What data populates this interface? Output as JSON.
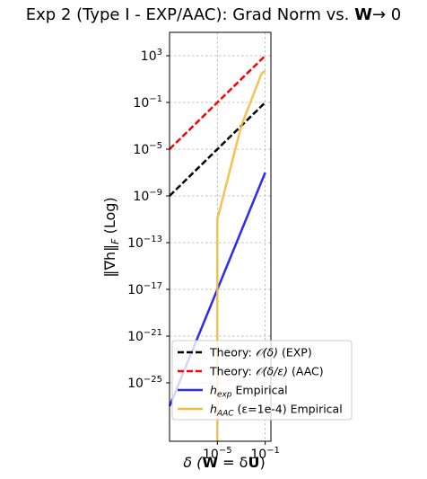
{
  "chart_data": {
    "type": "line",
    "title": "Exp 2 (Type I - EXP/AAC): Grad Norm vs. W→0",
    "title_prefix": "Exp 2 (Type I - EXP/AAC): Grad Norm vs. ",
    "title_bold": "W",
    "title_suffix": "→ 0",
    "xlabel": "δ (W = δU)",
    "xlabel_prefix": "δ (",
    "xlabel_bold_1": "W",
    "xlabel_mid": " = δ",
    "xlabel_bold_2": "U",
    "xlabel_suffix": ")",
    "ylabel": "‖∇h‖F (Log)",
    "ylabel_main": "‖∇h‖",
    "ylabel_sub": "F",
    "ylabel_tail": " (Log)",
    "xscale": "log",
    "yscale": "log",
    "xlim": [
      1e-09,
      0.3
    ],
    "ylim": [
      1e-30,
      100000.0
    ],
    "xticks": [
      {
        "value": 1e-05,
        "label": "10",
        "exp": "−5"
      },
      {
        "value": 0.1,
        "label": "10",
        "exp": "−1"
      }
    ],
    "yticks": [
      {
        "value": 1e-25,
        "label": "10",
        "exp": "−25"
      },
      {
        "value": 1e-21,
        "label": "10",
        "exp": "−21"
      },
      {
        "value": 1e-17,
        "label": "10",
        "exp": "−17"
      },
      {
        "value": 1e-13,
        "label": "10",
        "exp": "−13"
      },
      {
        "value": 1e-09,
        "label": "10",
        "exp": "−9"
      },
      {
        "value": 1e-05,
        "label": "10",
        "exp": "−5"
      },
      {
        "value": 0.1,
        "label": "10",
        "exp": "−1"
      },
      {
        "value": 1000,
        "label": "10",
        "exp": "3"
      }
    ],
    "grid": true,
    "legend_position": "lower-right",
    "series": [
      {
        "name": "Theory: O(δ) (EXP)",
        "legend_main": "Theory: ",
        "legend_math": "𝒪(δ)",
        "legend_tail": " (EXP)",
        "color": "#000000",
        "dash": "dashed",
        "x": [
          1e-09,
          0.1
        ],
        "y": [
          1e-09,
          0.1
        ]
      },
      {
        "name": "Theory: O(δ/ε) (AAC)",
        "legend_main": "Theory: ",
        "legend_math": "𝒪(δ/ε)",
        "legend_tail": " (AAC)",
        "color": "#ff0000",
        "dash": "dashed",
        "x": [
          1e-09,
          0.1
        ],
        "y": [
          1e-05,
          1000
        ]
      },
      {
        "name": "h_exp Empirical",
        "legend_main": "h",
        "legend_sub": "exp",
        "legend_tail": " Empirical",
        "color": "#2b2bf5",
        "dash": "solid",
        "x": [
          1e-09,
          0.1
        ],
        "y": [
          1e-27,
          1e-07
        ]
      },
      {
        "name": "h_AAC (ε=1e-4) Empirical",
        "legend_main": "h",
        "legend_sub": "AAC",
        "legend_tail": " (ε=1e-4) Empirical",
        "color": "#f5b942",
        "dash": "solid",
        "x": [
          1e-05,
          1e-05,
          1e-05,
          0.001,
          0.05,
          0.1
        ],
        "y": [
          1e-30,
          1e-18,
          1e-11,
          0.001,
          30,
          50
        ]
      }
    ]
  }
}
